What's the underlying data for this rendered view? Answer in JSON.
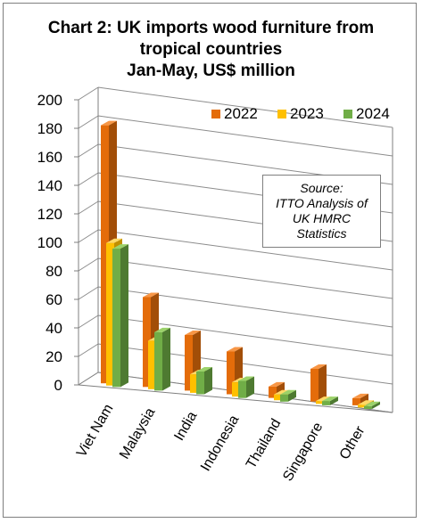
{
  "chart_data": {
    "type": "bar",
    "title_lines": [
      "Chart 2: UK imports wood furniture from",
      "tropical countries",
      "Jan-May, US$ million"
    ],
    "categories": [
      "Viet Nam",
      "Malaysia",
      "India",
      "Indonesia",
      "Thailand",
      "Singapore",
      "Other"
    ],
    "series": [
      {
        "name": "2022",
        "values": [
          181,
          63,
          39,
          30,
          8,
          23,
          5
        ]
      },
      {
        "name": "2023",
        "values": [
          100,
          34,
          13,
          10,
          4,
          2,
          2
        ]
      },
      {
        "name": "2024",
        "values": [
          97,
          41,
          16,
          12,
          5,
          3,
          2
        ]
      }
    ],
    "yticks": [
      "0",
      "20",
      "40",
      "60",
      "80",
      "100",
      "120",
      "140",
      "160",
      "180",
      "200"
    ],
    "ylim": [
      0,
      200
    ],
    "grid": true,
    "legend_position": "top-right",
    "annotation_lines": [
      "Source:",
      "ITTO Analysis of",
      "UK HMRC",
      "Statistics"
    ],
    "colors": {
      "2022": {
        "front": "#e46c0a",
        "side": "#a24e08",
        "top": "#f79646"
      },
      "2023": {
        "front": "#ffc000",
        "side": "#c08f00",
        "top": "#ffd966"
      },
      "2024": {
        "front": "#70ad47",
        "side": "#4e7a31",
        "top": "#9bd26a"
      },
      "grid": "#8c8c8c",
      "axis": "#7f7f7f"
    }
  }
}
